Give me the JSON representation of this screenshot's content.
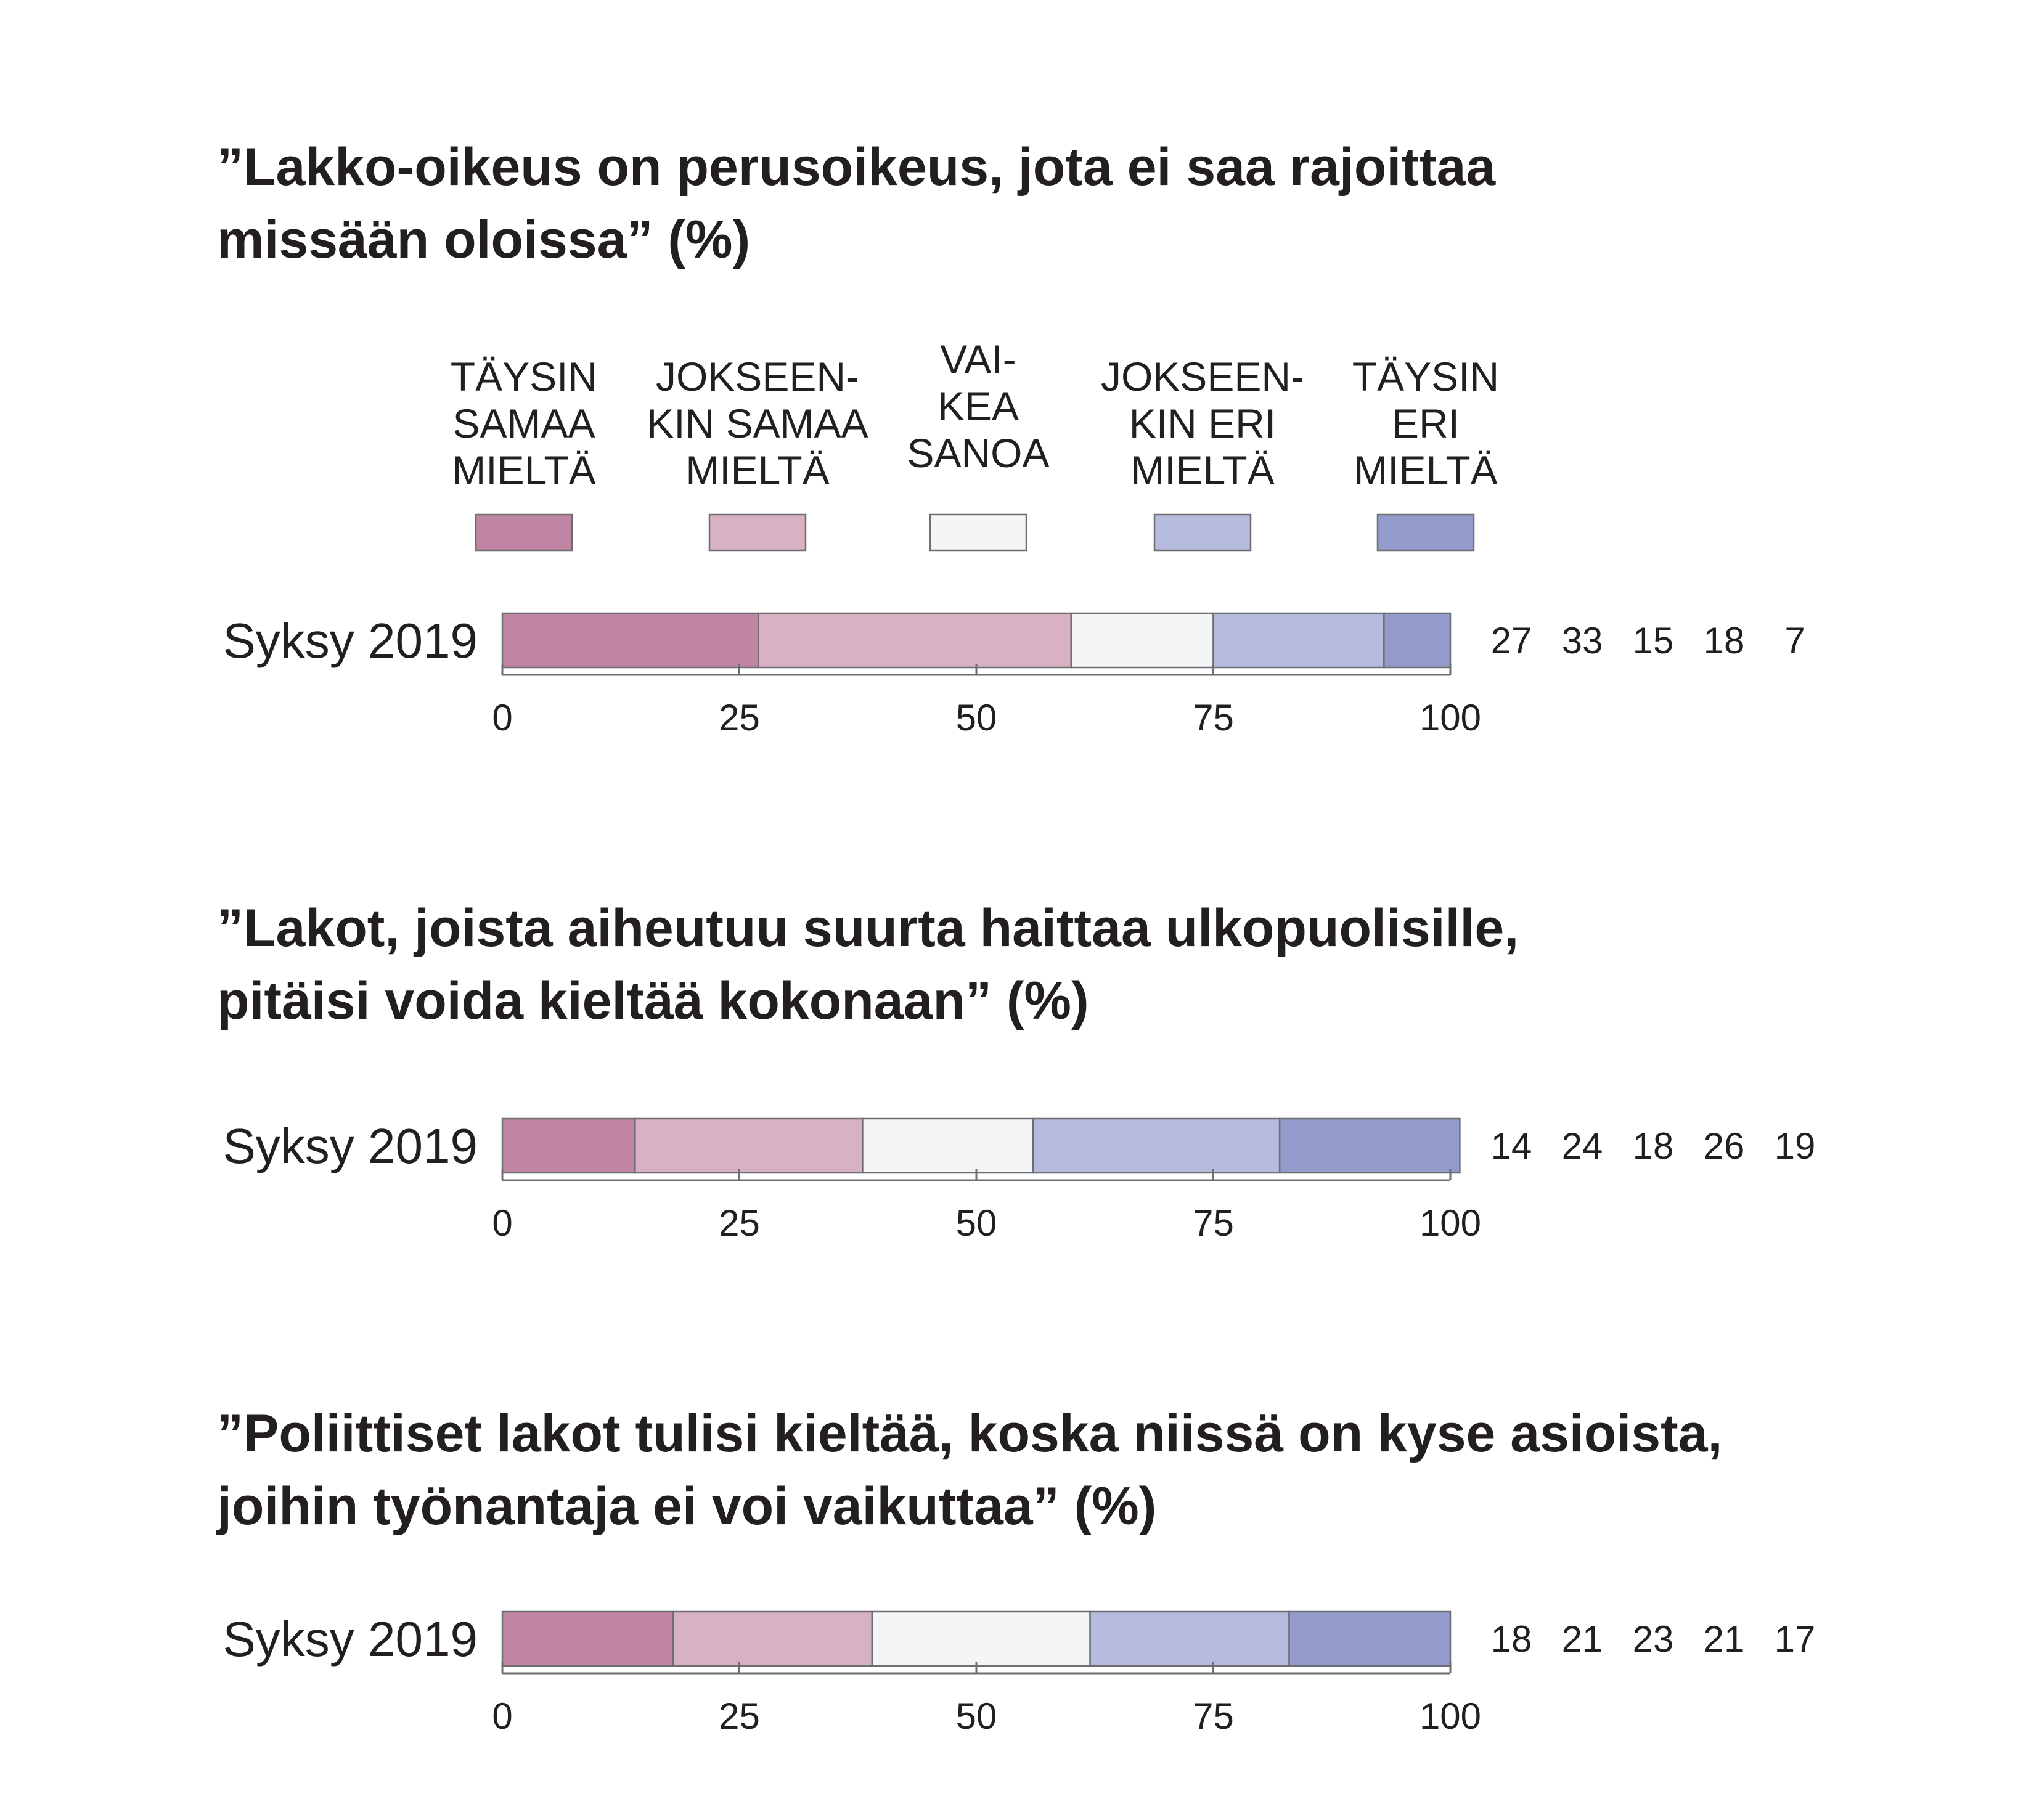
{
  "chart_data": {
    "type": "bar",
    "orientation": "horizontal",
    "stacked": true,
    "xlim": [
      0,
      100
    ],
    "xticks": [
      0,
      25,
      50,
      75,
      100
    ],
    "legend": {
      "placement": "top",
      "entries": [
        {
          "lines": [
            "TÄYSIN",
            "SAMAA",
            "MIELTÄ"
          ],
          "color": "#c085a2"
        },
        {
          "lines": [
            "JOKSEEN-",
            "KIN SAMAA",
            "MIELTÄ"
          ],
          "color": "#d9b1c4"
        },
        {
          "lines": [
            "VAI-",
            "KEA",
            "SANOA"
          ],
          "color": "#f4f5f6"
        },
        {
          "lines": [
            "JOKSEEN-",
            "KIN ERI",
            "MIELTÄ"
          ],
          "color": "#b6bbde"
        },
        {
          "lines": [
            "TÄYSIN",
            "ERI",
            "MIELTÄ"
          ],
          "color": "#929bcb"
        }
      ]
    },
    "panels": [
      {
        "title": [
          "”Lakko-oikeus on perusoikeus, jota ei saa rajoittaa",
          "missään oloissa” (%)"
        ],
        "category": "Syksy 2019",
        "values": [
          27,
          33,
          15,
          18,
          7
        ]
      },
      {
        "title": [
          "”Lakot, joista aiheutuu suurta haittaa ulkopuolisille,",
          "pitäisi voida kieltää kokonaan” (%)"
        ],
        "category": "Syksy 2019",
        "values": [
          14,
          24,
          18,
          26,
          19
        ]
      },
      {
        "title": [
          "”Poliittiset lakot tulisi kieltää, koska niissä on kyse asioista,",
          "joihin työnantaja ei voi vaikuttaa” (%)"
        ],
        "category": "Syksy 2019",
        "values": [
          18,
          21,
          23,
          21,
          17
        ]
      }
    ]
  }
}
